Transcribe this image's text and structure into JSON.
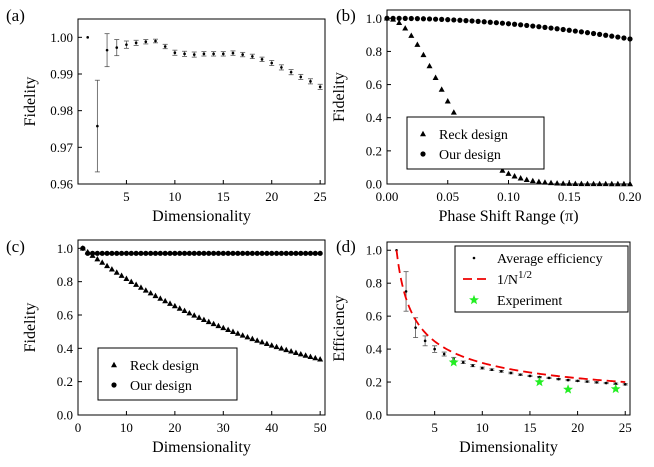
{
  "chart_data": [
    {
      "panel": "(a)",
      "type": "scatter",
      "xlabel": "Dimensionality",
      "ylabel": "Fidelity",
      "xlim": [
        0,
        25.5
      ],
      "ylim": [
        0.96,
        1.005
      ],
      "xticks": [
        5,
        10,
        15,
        20,
        25
      ],
      "yticks": [
        0.96,
        0.97,
        0.98,
        0.99,
        1.0
      ],
      "yticklabels": [
        "0.96",
        "0.97",
        "0.98",
        "0.99",
        "1.00"
      ],
      "legend": null,
      "series": [
        {
          "marker": "dot",
          "error_bars": true,
          "x": [
            1,
            2,
            3,
            4,
            5,
            6,
            7,
            8,
            9,
            10,
            11,
            12,
            13,
            14,
            15,
            16,
            17,
            18,
            19,
            20,
            21,
            22,
            23,
            24,
            25
          ],
          "y": [
            1.0,
            0.9758,
            0.9965,
            0.9972,
            0.998,
            0.9985,
            0.9988,
            0.999,
            0.9975,
            0.9958,
            0.9955,
            0.9953,
            0.9955,
            0.9955,
            0.9955,
            0.9957,
            0.9953,
            0.9948,
            0.994,
            0.993,
            0.9918,
            0.9905,
            0.9892,
            0.988,
            0.9865
          ],
          "err": [
            0,
            0.0125,
            0.0045,
            0.0022,
            0.001,
            0.0007,
            0.0006,
            0.0005,
            0.0006,
            0.0007,
            0.0007,
            0.0007,
            0.0006,
            0.0006,
            0.0006,
            0.0006,
            0.0006,
            0.0006,
            0.0006,
            0.0007,
            0.0007,
            0.0007,
            0.0007,
            0.0007,
            0.0007
          ]
        }
      ]
    },
    {
      "panel": "(b)",
      "type": "scatter",
      "xlabel": "Phase Shift Range (π)",
      "ylabel": "Fidelity",
      "xlim": [
        0,
        0.2
      ],
      "ylim": [
        0,
        1.05
      ],
      "xticks": [
        0,
        0.05,
        0.1,
        0.15,
        0.2
      ],
      "xticklabels": [
        "0.00",
        "0.05",
        "0.10",
        "0.15",
        "0.20"
      ],
      "yticks": [
        0,
        0.2,
        0.4,
        0.6,
        0.8,
        1.0
      ],
      "yticklabels": [
        "0.0",
        "0.2",
        "0.4",
        "0.6",
        "0.8",
        "1.0"
      ],
      "legend": {
        "position": "bottom-left",
        "entries": [
          "Reck design",
          "Our design"
        ]
      },
      "series": [
        {
          "name": "Reck design",
          "marker": "triangle",
          "model": "gauss",
          "y0": 1.0,
          "c": 0.0036,
          "n": 41
        },
        {
          "name": "Our design",
          "marker": "circle",
          "model": "gauss",
          "y0": 1.0,
          "c": 0.3,
          "n": 41
        }
      ]
    },
    {
      "panel": "(c)",
      "type": "scatter",
      "xlabel": "Dimensionality",
      "ylabel": "Fidelity",
      "xlim": [
        0,
        51
      ],
      "ylim": [
        0,
        1.05
      ],
      "xticks": [
        0,
        10,
        20,
        30,
        40,
        50
      ],
      "yticks": [
        0,
        0.2,
        0.4,
        0.6,
        0.8,
        1.0
      ],
      "yticklabels": [
        "0.0",
        "0.2",
        "0.4",
        "0.6",
        "0.8",
        "1.0"
      ],
      "legend": {
        "position": "bottom-left",
        "entries": [
          "Reck design",
          "Our design"
        ]
      },
      "series": [
        {
          "name": "Reck design",
          "marker": "triangle",
          "model": "exp",
          "from": 1,
          "to": 50,
          "y0": 1.0,
          "k": 0.02239
        },
        {
          "name": "Our design",
          "marker": "circle",
          "model": "flat",
          "from": 1,
          "to": 50,
          "first": 1.0,
          "value": 0.97
        }
      ]
    },
    {
      "panel": "(d)",
      "type": "scatter",
      "xlabel": "Dimensionality",
      "ylabel": "Efficiency",
      "xlim": [
        0,
        25.5
      ],
      "ylim": [
        0,
        1.05
      ],
      "xticks": [
        5,
        10,
        15,
        20,
        25
      ],
      "yticks": [
        0,
        0.2,
        0.4,
        0.6,
        0.8,
        1.0
      ],
      "yticklabels": [
        "0.0",
        "0.2",
        "0.4",
        "0.6",
        "0.8",
        "1.0"
      ],
      "legend": {
        "position": "top-right",
        "entries": [
          "Average efficiency",
          "1/N",
          "Experiment"
        ],
        "superscript": "1/2"
      },
      "series": [
        {
          "name": "Average efficiency",
          "marker": "dot",
          "error_bars": true,
          "x": [
            1,
            2,
            3,
            4,
            5,
            6,
            7,
            8,
            9,
            10,
            11,
            12,
            13,
            14,
            15,
            16,
            17,
            18,
            19,
            20,
            21,
            22,
            23,
            24,
            25
          ],
          "y": [
            1.0,
            0.75,
            0.53,
            0.45,
            0.4,
            0.37,
            0.34,
            0.32,
            0.3,
            0.285,
            0.275,
            0.265,
            0.255,
            0.245,
            0.237,
            0.23,
            0.225,
            0.218,
            0.212,
            0.207,
            0.203,
            0.198,
            0.194,
            0.19,
            0.186
          ],
          "err": [
            0,
            0.12,
            0.06,
            0.03,
            0.02,
            0.012,
            0.01,
            0.008,
            0.007,
            0.006,
            0.005,
            0.005,
            0.005,
            0.004,
            0.004,
            0.004,
            0.004,
            0.004,
            0.004,
            0.004,
            0.004,
            0.004,
            0.004,
            0.004,
            0.004
          ]
        },
        {
          "name": "1/N^1/2",
          "style": "dashed",
          "color": "#ee0000",
          "function": "inverse_sqrt",
          "from": 1,
          "to": 25
        },
        {
          "name": "Experiment",
          "marker": "star",
          "color": "#22ee22",
          "x": [
            7,
            16,
            19,
            24
          ],
          "y": [
            0.32,
            0.2,
            0.155,
            0.158
          ]
        }
      ]
    }
  ]
}
